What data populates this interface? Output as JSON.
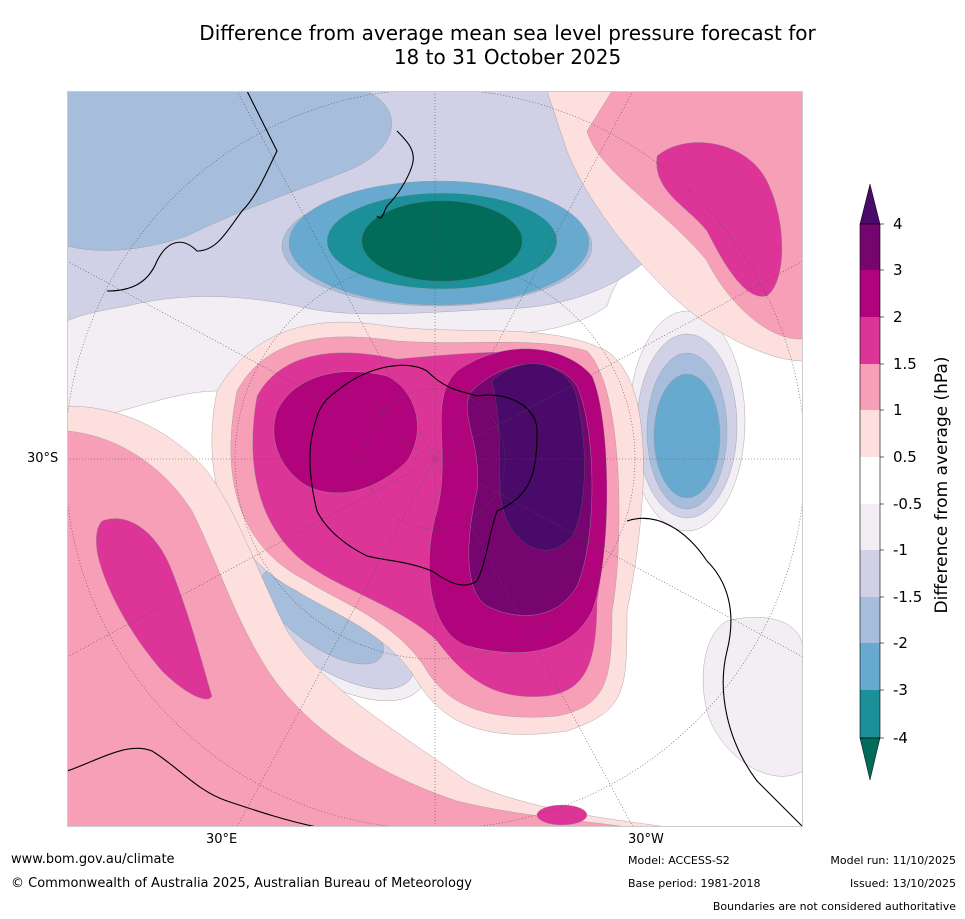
{
  "title": {
    "line1": "Difference from average mean sea level pressure forecast for",
    "line2": "18 to 31 October 2025"
  },
  "map": {
    "projection": "south polar stereographic",
    "longitude_labels": [
      "30°E",
      "30°W"
    ],
    "latitude_labels": [
      "30°S"
    ]
  },
  "colorbar": {
    "label": "Difference from average (hPa)",
    "tick_labels": [
      "4",
      "3",
      "2",
      "1.5",
      "1",
      "0.5",
      "-0.5",
      "-1",
      "-1.5",
      "-2",
      "-3",
      "-4"
    ],
    "colors": {
      "above_4": "#4a0a6a",
      "3_to_4": "#76056f",
      "2_to_3": "#b0037c",
      "1.5_to_2": "#dd3497",
      "1_to_1.5": "#f89fb8",
      "0.5_to_1": "#fde0dd",
      "-0.5_to_0.5": "#ffffff",
      "-1_to_-0.5": "#f2eef4",
      "-1.5_to_-1": "#d0d1e6",
      "-2_to_-1.5": "#a6bddb",
      "-3_to_-2": "#67a9cf",
      "-4_to_-3": "#1c9099",
      "below_-4": "#016c59"
    }
  },
  "footer": {
    "website": "www.bom.gov.au/climate",
    "copyright": "© Commonwealth of Australia 2025, Australian Bureau of Meteorology",
    "model": "Model: ACCESS-S2",
    "base_period": "Base period: 1981-2018",
    "model_run": "Model run: 11/10/2025",
    "issued": "Issued: 13/10/2025",
    "disclaimer": "Boundaries are not considered authoritative"
  }
}
